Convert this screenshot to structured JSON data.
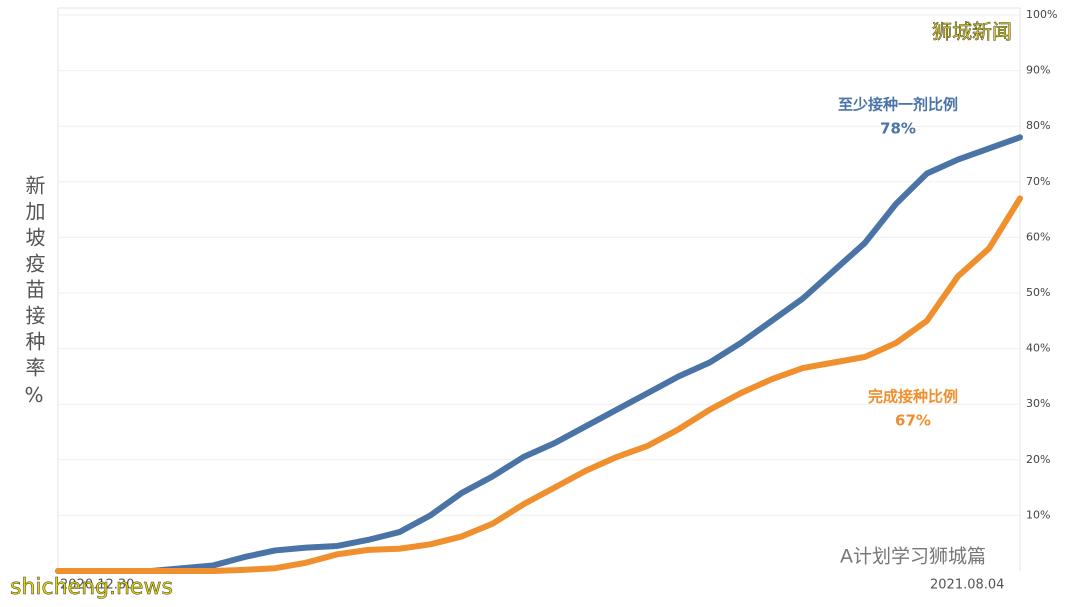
{
  "chart_data": {
    "type": "line",
    "y_label": "新加坡疫苗接种率%",
    "categories": [
      "2020.12.30",
      null,
      null,
      null,
      null,
      null,
      null,
      null,
      null,
      null,
      null,
      null,
      null,
      null,
      null,
      null,
      null,
      null,
      null,
      null,
      null,
      null,
      null,
      null,
      null,
      null,
      null,
      null,
      null,
      null,
      null,
      "2021.08.04"
    ],
    "series": [
      {
        "name": "至少接种一剂比例",
        "color": "#4a74a5",
        "values": [
          0,
          0,
          0,
          0,
          0.5,
          1,
          2.5,
          3.7,
          4.2,
          4.5,
          5.6,
          7,
          10,
          14,
          17,
          20.5,
          23,
          26,
          29,
          32,
          35,
          37.5,
          41,
          45,
          49,
          54,
          59,
          66,
          71.5,
          74,
          76,
          78
        ],
        "value_labels": [
          null,
          null,
          null,
          null,
          null,
          null,
          null,
          null,
          null,
          null,
          null,
          null,
          null,
          null,
          null,
          null,
          null,
          null,
          null,
          null,
          null,
          null,
          null,
          null,
          null,
          null,
          null,
          null,
          null,
          null,
          null,
          "78%"
        ]
      },
      {
        "name": "完成接种比例",
        "color": "#ef8f2e",
        "values": [
          0,
          0,
          0,
          0,
          0,
          0,
          0.2,
          0.5,
          1.5,
          3,
          3.8,
          4,
          4.8,
          6.2,
          8.5,
          12,
          15,
          18,
          20.5,
          22.5,
          25.5,
          29,
          32,
          34.5,
          36.5,
          37.5,
          38.5,
          41,
          45,
          53,
          58,
          67
        ],
        "value_labels": [
          null,
          null,
          null,
          null,
          null,
          null,
          null,
          null,
          null,
          null,
          null,
          null,
          null,
          null,
          null,
          null,
          null,
          null,
          null,
          null,
          null,
          null,
          null,
          null,
          null,
          null,
          null,
          null,
          null,
          null,
          null,
          "67%"
        ]
      }
    ],
    "ylim": [
      0,
      100
    ],
    "yticks": [
      {
        "value": 10,
        "label": "10%"
      },
      {
        "value": 20,
        "label": "20%"
      },
      {
        "value": 30,
        "label": "30%"
      },
      {
        "value": 40,
        "label": "40%"
      },
      {
        "value": 50,
        "label": "50%"
      },
      {
        "value": 60,
        "label": "60%"
      },
      {
        "value": 70,
        "label": "70%"
      },
      {
        "value": 80,
        "label": "80%"
      },
      {
        "value": 90,
        "label": "90%"
      },
      {
        "value": 100,
        "label": "100%"
      }
    ],
    "grid": true,
    "watermarks": [
      "狮城新闻",
      "shicheng.news",
      "A计划学习狮城篇"
    ]
  }
}
